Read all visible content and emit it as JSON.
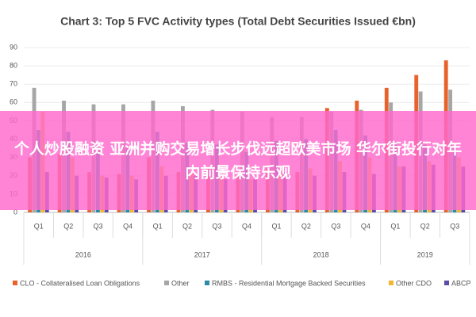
{
  "chart_data": {
    "type": "bar",
    "title": "Chart 3: Top 5 FVC Activity types (Total Debt Securities Issued €bn)",
    "groups": [
      {
        "name": "2016",
        "categories": [
          "Q1",
          "Q2",
          "Q3",
          "Q4"
        ]
      },
      {
        "name": "2017",
        "categories": [
          "Q1",
          "Q2",
          "Q3",
          "Q4"
        ]
      },
      {
        "name": "2018",
        "categories": [
          "Q1",
          "Q2",
          "Q3",
          "Q4"
        ]
      },
      {
        "name": "2019",
        "categories": [
          "Q1",
          "Q2",
          "Q3"
        ]
      }
    ],
    "series": [
      {
        "name": "CLO - Collateralised Loan Obligations",
        "color": "#e8622c",
        "values": [
          30,
          32,
          22,
          21,
          30,
          22,
          24,
          20,
          24,
          22,
          57,
          61,
          68,
          75,
          83
        ]
      },
      {
        "name": "Other",
        "color": "#a6a6a6",
        "values": [
          68,
          61,
          59,
          59,
          61,
          58,
          56,
          55,
          52,
          52,
          55,
          56,
          60,
          66,
          67
        ]
      },
      {
        "name": "RMBS - Residential Mortgage Backed Securities",
        "color": "#2e8ba6",
        "values": [
          45,
          44,
          35,
          35,
          44,
          38,
          37,
          33,
          39,
          40,
          45,
          42,
          38,
          37,
          35
        ]
      },
      {
        "name": "Other CDO",
        "color": "#f2b632",
        "values": [
          55,
          30,
          20,
          20,
          25,
          22,
          20,
          18,
          22,
          24,
          28,
          30,
          25,
          28,
          30
        ]
      },
      {
        "name": "ABCP",
        "color": "#5b4ea8",
        "values": [
          22,
          20,
          19,
          18,
          20,
          20,
          18,
          18,
          22,
          20,
          22,
          21,
          25,
          26,
          25
        ]
      }
    ],
    "ylim": [
      0,
      90
    ],
    "yticks": [
      0,
      10,
      20,
      30,
      40,
      50,
      60,
      70,
      80,
      90
    ],
    "grid": true,
    "legend": "bottom"
  },
  "banner": {
    "text": "个人炒股融资 亚洲并购交易增长步伐远超欧美市场 华尔街投行对年内前景保持乐观"
  }
}
